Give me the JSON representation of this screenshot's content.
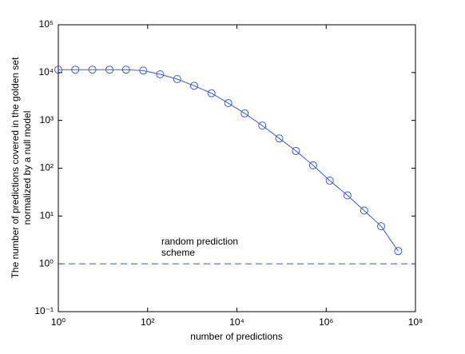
{
  "chart_data": {
    "type": "line",
    "xlabel": "number of predictions",
    "ylabel": [
      "The number of predictions covered in the golden set",
      "normalized by a null model"
    ],
    "xscale": "log",
    "yscale": "log",
    "xlim": [
      1,
      100000000
    ],
    "ylim": [
      0.1,
      100000
    ],
    "xticks": [
      {
        "value": 1,
        "label": "10⁰"
      },
      {
        "value": 100,
        "label": "10²"
      },
      {
        "value": 10000,
        "label": "10⁴"
      },
      {
        "value": 1000000,
        "label": "10⁶"
      },
      {
        "value": 100000000,
        "label": "10⁸"
      }
    ],
    "yticks": [
      {
        "value": 0.1,
        "label": "10⁻¹"
      },
      {
        "value": 1,
        "label": "10⁰"
      },
      {
        "value": 10,
        "label": "10¹"
      },
      {
        "value": 100,
        "label": "10²"
      },
      {
        "value": 1000,
        "label": "10³"
      },
      {
        "value": 10000,
        "label": "10⁴"
      },
      {
        "value": 100000,
        "label": "10⁵"
      }
    ],
    "color": "#3b5bdb",
    "x": [
      1,
      2.4,
      5.8,
      14,
      33,
      80,
      190,
      460,
      1100,
      2700,
      6400,
      15000,
      37000,
      89000,
      210000,
      510000,
      1200000,
      3000000,
      7100000,
      17000000,
      41000000
    ],
    "values": [
      11500,
      11500,
      11500,
      11500,
      11500,
      11000,
      9200,
      7300,
      5300,
      3700,
      2300,
      1400,
      780,
      420,
      230,
      115,
      55,
      27,
      13,
      6.1,
      1.85
    ],
    "reference": {
      "value": 1,
      "annotation": [
        "random prediction",
        "scheme"
      ]
    }
  }
}
